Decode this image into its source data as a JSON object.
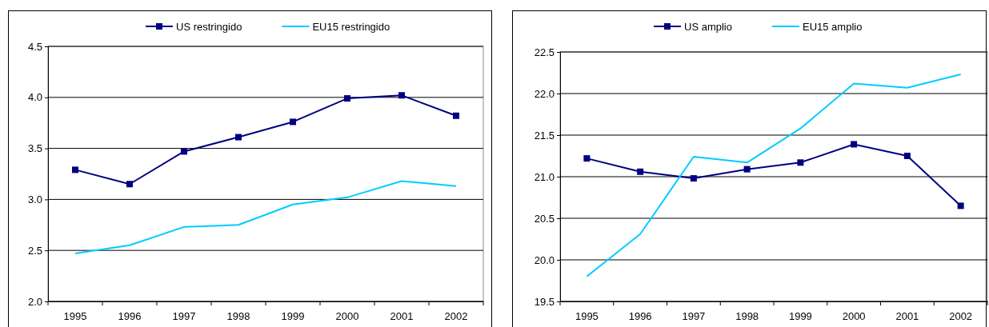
{
  "chart_data": [
    {
      "type": "line",
      "categories": [
        "1995",
        "1996",
        "1997",
        "1998",
        "1999",
        "2000",
        "2001",
        "2002"
      ],
      "series": [
        {
          "name": "US restringido",
          "color": "#000080",
          "marker": "square",
          "values": [
            3.29,
            3.15,
            3.47,
            3.61,
            3.76,
            3.99,
            4.02,
            3.82
          ]
        },
        {
          "name": "EU15 restringido",
          "color": "#00ccff",
          "marker": "none",
          "values": [
            2.47,
            2.55,
            2.73,
            2.75,
            2.95,
            3.02,
            3.18,
            3.13
          ]
        }
      ],
      "ylim": [
        2.0,
        4.5
      ],
      "yticks": [
        {
          "value": 2,
          "label": "2.0"
        },
        {
          "value": 2.5,
          "label": "2.5"
        },
        {
          "value": 3,
          "label": "3.0"
        },
        {
          "value": 3.5,
          "label": "3.5"
        },
        {
          "value": 4,
          "label": "4.0"
        },
        {
          "value": 4.5,
          "label": "4.5"
        }
      ],
      "grid": "y",
      "legend": "top"
    },
    {
      "type": "line",
      "categories": [
        "1995",
        "1996",
        "1997",
        "1998",
        "1999",
        "2000",
        "2001",
        "2002"
      ],
      "series": [
        {
          "name": "US amplio",
          "color": "#000080",
          "marker": "square",
          "values": [
            21.22,
            21.06,
            20.98,
            21.09,
            21.17,
            21.39,
            21.25,
            20.65
          ]
        },
        {
          "name": "EU15 amplio",
          "color": "#00ccff",
          "marker": "none",
          "values": [
            19.8,
            20.31,
            21.24,
            21.17,
            21.58,
            22.12,
            22.07,
            22.23
          ]
        }
      ],
      "ylim": [
        19.5,
        22.5
      ],
      "yticks": [
        {
          "value": 19.5,
          "label": "19.5"
        },
        {
          "value": 20,
          "label": "20.0"
        },
        {
          "value": 20.5,
          "label": "20.5"
        },
        {
          "value": 21,
          "label": "21.0"
        },
        {
          "value": 21.5,
          "label": "21.5"
        },
        {
          "value": 22,
          "label": "22.0"
        },
        {
          "value": 22.5,
          "label": "22.5"
        }
      ],
      "grid": "y",
      "legend": "top"
    }
  ]
}
